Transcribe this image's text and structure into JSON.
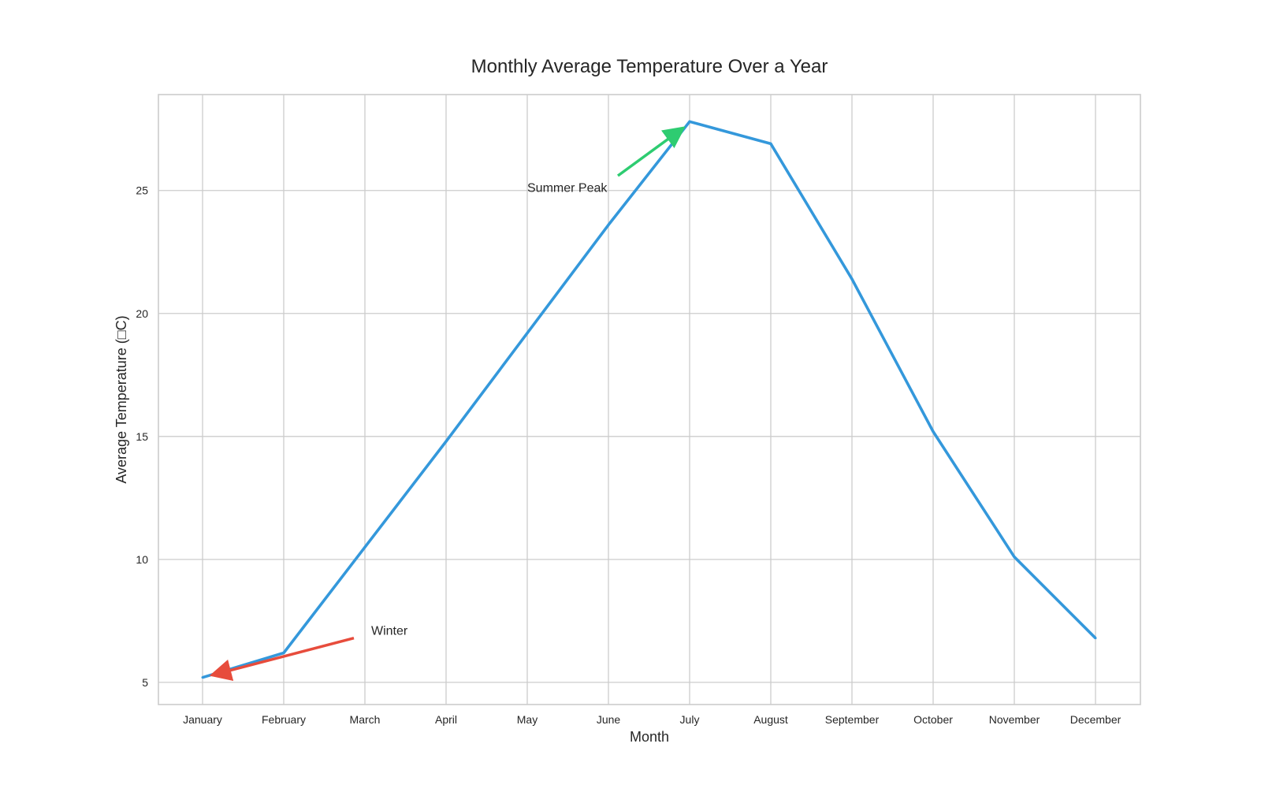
{
  "chart_data": {
    "type": "line",
    "title": "Monthly Average Temperature Over a Year",
    "xlabel": "Month",
    "ylabel": "Average Temperature (□C)",
    "categories": [
      "January",
      "February",
      "March",
      "April",
      "May",
      "June",
      "July",
      "August",
      "September",
      "October",
      "November",
      "December"
    ],
    "series": [
      {
        "values": [
          5.2,
          6.2,
          10.5,
          14.8,
          19.2,
          23.6,
          27.8,
          26.9,
          21.4,
          15.2,
          10.1,
          6.8
        ],
        "color": "#3498db"
      }
    ],
    "ylim": [
      4.1,
      28.9
    ],
    "yticks": [
      5,
      10,
      15,
      20,
      25
    ],
    "grid": true,
    "legend": false,
    "annotations": [
      {
        "text": "Winter",
        "text_at": {
          "month": "March",
          "value": 7.0
        },
        "arrow_from": {
          "month": "March",
          "value": 6.8
        },
        "arrow_to": {
          "month": "January",
          "value": 5.2
        },
        "color": "#e74c3c"
      },
      {
        "text": "Summer Peak",
        "text_at": {
          "month": "May",
          "value": 25.0
        },
        "arrow_from": {
          "month": "June",
          "value": 25.6
        },
        "arrow_to": {
          "month": "July",
          "value": 27.8
        },
        "color": "#2ecc71"
      }
    ]
  }
}
